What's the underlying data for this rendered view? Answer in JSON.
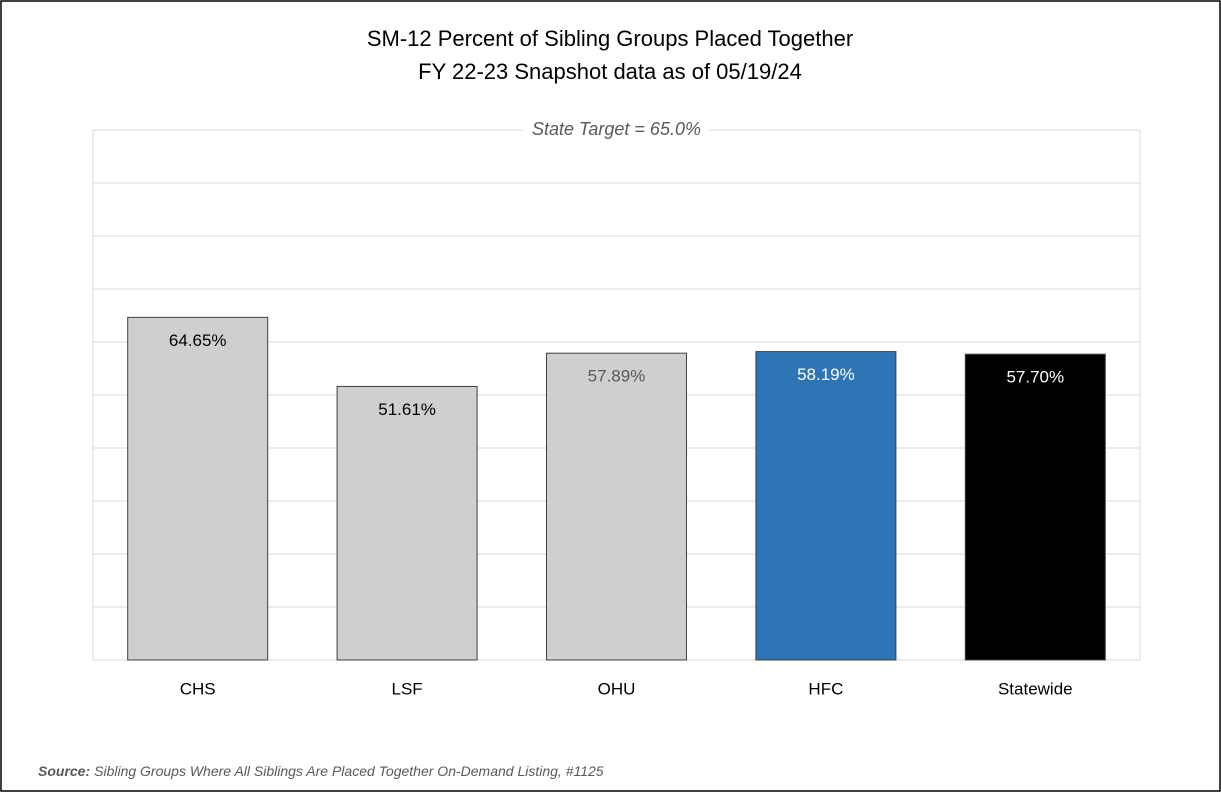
{
  "chart_data": {
    "type": "bar",
    "title": "SM-12 Percent of Sibling Groups Placed Together",
    "subtitle": "FY 22-23 Snapshot data as of 05/19/24",
    "annotation": "State Target = 65.0%",
    "categories": [
      "CHS",
      "LSF",
      "OHU",
      "HFC",
      "Statewide"
    ],
    "values": [
      64.65,
      51.61,
      57.89,
      58.19,
      57.7
    ],
    "value_labels": [
      "64.65%",
      "51.61%",
      "57.89%",
      "58.19%",
      "57.70%"
    ],
    "colors": [
      "#d0cece",
      "#d0cece",
      "#d0cece",
      "#2e75b6",
      "#000000"
    ],
    "label_colors": [
      "#000000",
      "#000000",
      "#595959",
      "#ffffff",
      "#ffffff"
    ],
    "ylim": [
      0,
      100
    ],
    "yticks": [
      0,
      10,
      20,
      30,
      40,
      50,
      60,
      70,
      80,
      90,
      100
    ],
    "grid": true,
    "source_label": "Source:",
    "source": "Sibling Groups Where All Siblings Are Placed Together On-Demand Listing, #1125"
  }
}
